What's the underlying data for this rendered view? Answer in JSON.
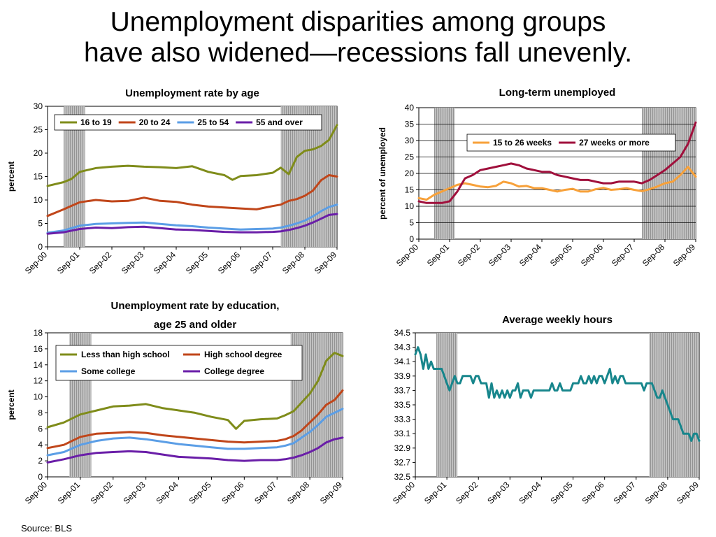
{
  "slide": {
    "title_line1": "Unemployment disparities among groups",
    "title_line2": "have also widened—recessions fall unevenly.",
    "source": "Source: BLS"
  },
  "style": {
    "recession_fill": "#c0c0c0",
    "recession_hatch": "#888888"
  },
  "chart_data": [
    {
      "type": "line",
      "title": "Unemployment rate by age",
      "xlabel": "",
      "ylabel": "percent",
      "x_tick_labels": [
        "Sep-00",
        "Sep-01",
        "Sep-02",
        "Sep-03",
        "Sep-04",
        "Sep-05",
        "Sep-06",
        "Sep-07",
        "Sep-08",
        "Sep-09"
      ],
      "x_range_months": [
        0,
        108
      ],
      "ylim": [
        0,
        30
      ],
      "y_ticks": [
        "0",
        "5",
        "10",
        "15",
        "20",
        "25",
        "30"
      ],
      "recessions_months": [
        [
          6,
          14
        ],
        [
          87,
          108
        ]
      ],
      "grid": false,
      "legend_placement": "top",
      "series": [
        {
          "name": "16 to 19",
          "color": "#7f8c1a",
          "x": [
            0,
            6,
            9,
            12,
            18,
            24,
            30,
            36,
            42,
            48,
            54,
            60,
            66,
            69,
            72,
            78,
            84,
            87,
            90,
            93,
            96,
            99,
            102,
            105,
            108
          ],
          "y": [
            13,
            13.8,
            14.5,
            16,
            16.8,
            17.1,
            17.3,
            17.1,
            17.0,
            16.8,
            17.2,
            16.0,
            15.3,
            14.3,
            15.1,
            15.3,
            15.8,
            16.9,
            15.5,
            19.2,
            20.5,
            20.8,
            21.5,
            22.8,
            26.0
          ]
        },
        {
          "name": "20 to 24",
          "color": "#c0461a",
          "x": [
            0,
            6,
            12,
            18,
            24,
            30,
            36,
            42,
            48,
            54,
            60,
            66,
            72,
            78,
            84,
            87,
            90,
            93,
            96,
            99,
            102,
            105,
            108
          ],
          "y": [
            6.6,
            8.0,
            9.5,
            10.0,
            9.7,
            9.8,
            10.5,
            9.8,
            9.6,
            9.0,
            8.6,
            8.4,
            8.2,
            8.0,
            8.7,
            9.0,
            9.8,
            10.2,
            10.9,
            12.0,
            14.2,
            15.3,
            15.0
          ]
        },
        {
          "name": "25 to 54",
          "color": "#5b9ee6",
          "x": [
            0,
            6,
            12,
            18,
            24,
            30,
            36,
            42,
            48,
            54,
            60,
            66,
            72,
            78,
            84,
            87,
            90,
            93,
            96,
            99,
            102,
            105,
            108
          ],
          "y": [
            3.0,
            3.5,
            4.5,
            4.9,
            5.0,
            5.1,
            5.2,
            4.9,
            4.6,
            4.4,
            4.1,
            3.9,
            3.7,
            3.8,
            3.9,
            4.1,
            4.5,
            5.0,
            5.6,
            6.5,
            7.6,
            8.5,
            9.0
          ]
        },
        {
          "name": "55 and over",
          "color": "#6a1ea8",
          "x": [
            0,
            6,
            12,
            18,
            24,
            30,
            36,
            42,
            48,
            54,
            60,
            66,
            72,
            78,
            84,
            87,
            90,
            93,
            96,
            99,
            102,
            105,
            108
          ],
          "y": [
            2.8,
            3.1,
            3.8,
            4.1,
            4.0,
            4.2,
            4.3,
            4.0,
            3.7,
            3.6,
            3.4,
            3.2,
            3.1,
            3.1,
            3.2,
            3.3,
            3.6,
            4.0,
            4.5,
            5.2,
            6.0,
            6.8,
            7.0
          ]
        }
      ]
    },
    {
      "type": "line",
      "title": "Long-term unemployed",
      "xlabel": "",
      "ylabel": "percent of unemployed",
      "x_tick_labels": [
        "Sep-00",
        "Sep-01",
        "Sep-02",
        "Sep-03",
        "Sep-04",
        "Sep-05",
        "Sep-06",
        "Sep-07",
        "Sep-08",
        "Sep-09"
      ],
      "x_range_months": [
        0,
        108
      ],
      "ylim": [
        0,
        40
      ],
      "y_ticks": [
        "0",
        "5",
        "10",
        "15",
        "20",
        "25",
        "30",
        "35",
        "40"
      ],
      "recessions_months": [
        [
          6,
          14
        ],
        [
          87,
          108
        ]
      ],
      "grid": true,
      "legend_placement": "top",
      "series": [
        {
          "name": "15 to 26 weeks",
          "color": "#f7a13a",
          "x": [
            0,
            3,
            6,
            9,
            12,
            15,
            18,
            21,
            24,
            27,
            30,
            33,
            36,
            39,
            42,
            45,
            48,
            51,
            54,
            57,
            60,
            63,
            66,
            69,
            72,
            75,
            78,
            81,
            84,
            87,
            90,
            93,
            96,
            99,
            102,
            105,
            108
          ],
          "y": [
            12.5,
            12.0,
            13.5,
            14.5,
            15.5,
            16.5,
            17.0,
            16.5,
            16.0,
            15.8,
            16.2,
            17.5,
            17.0,
            16.0,
            16.2,
            15.5,
            15.5,
            15.0,
            14.5,
            15.0,
            15.3,
            14.5,
            14.5,
            15.2,
            15.6,
            15.0,
            15.2,
            15.5,
            15.0,
            14.6,
            15.2,
            16.0,
            17.0,
            17.5,
            19.5,
            22.0,
            19.0
          ]
        },
        {
          "name": "27 weeks or more",
          "color": "#a0103c",
          "x": [
            0,
            3,
            6,
            9,
            12,
            15,
            18,
            21,
            24,
            27,
            30,
            33,
            36,
            39,
            42,
            45,
            48,
            51,
            54,
            57,
            60,
            63,
            66,
            69,
            72,
            75,
            78,
            81,
            84,
            87,
            90,
            93,
            96,
            99,
            102,
            105,
            108
          ],
          "y": [
            11.5,
            11.0,
            11.0,
            11.0,
            11.5,
            14.5,
            18.5,
            19.5,
            21.0,
            21.5,
            22.0,
            22.5,
            23.0,
            22.5,
            21.5,
            21.0,
            20.5,
            20.5,
            19.5,
            19.0,
            18.5,
            18.0,
            18.0,
            17.5,
            17.0,
            17.0,
            17.5,
            17.5,
            17.5,
            17.0,
            18.0,
            19.5,
            21.0,
            23.0,
            25.0,
            29.0,
            35.5
          ]
        }
      ]
    },
    {
      "type": "line",
      "title": "Unemployment rate by education, age 25 and older",
      "title_lines": [
        "Unemployment rate by education,",
        "age 25 and older"
      ],
      "xlabel": "",
      "ylabel": "percent",
      "x_tick_labels": [
        "Sep-00",
        "Sep-01",
        "Sep-02",
        "Sep-03",
        "Sep-04",
        "Sep-05",
        "Sep-06",
        "Sep-07",
        "Sep-08",
        "Sep-09"
      ],
      "x_range_months": [
        0,
        108
      ],
      "ylim": [
        0,
        18
      ],
      "y_ticks": [
        "0",
        "2",
        "4",
        "6",
        "8",
        "10",
        "12",
        "14",
        "16",
        "18"
      ],
      "recessions_months": [
        [
          8,
          16
        ],
        [
          89,
          108
        ]
      ],
      "grid": false,
      "legend_placement": "top",
      "series": [
        {
          "name": "Less than high school",
          "color": "#7f8c1a",
          "x": [
            0,
            6,
            12,
            18,
            24,
            30,
            36,
            42,
            48,
            54,
            60,
            66,
            69,
            72,
            78,
            84,
            87,
            90,
            93,
            96,
            99,
            102,
            105,
            108
          ],
          "y": [
            6.2,
            6.8,
            7.8,
            8.3,
            8.8,
            8.9,
            9.1,
            8.6,
            8.3,
            8.0,
            7.5,
            7.1,
            6.0,
            7.0,
            7.2,
            7.3,
            7.7,
            8.2,
            9.3,
            10.4,
            12.0,
            14.5,
            15.5,
            15.1
          ]
        },
        {
          "name": "High school degree",
          "color": "#c0461a",
          "x": [
            0,
            6,
            12,
            18,
            24,
            30,
            36,
            42,
            48,
            54,
            60,
            66,
            72,
            78,
            84,
            87,
            90,
            93,
            96,
            99,
            102,
            105,
            108
          ],
          "y": [
            3.6,
            4.0,
            5.0,
            5.4,
            5.5,
            5.6,
            5.5,
            5.2,
            5.0,
            4.8,
            4.6,
            4.4,
            4.3,
            4.4,
            4.5,
            4.7,
            5.1,
            5.8,
            6.8,
            7.8,
            9.0,
            9.6,
            10.8
          ]
        },
        {
          "name": "Some college",
          "color": "#5b9ee6",
          "x": [
            0,
            6,
            12,
            18,
            24,
            30,
            36,
            42,
            48,
            54,
            60,
            66,
            72,
            78,
            84,
            87,
            90,
            93,
            96,
            99,
            102,
            105,
            108
          ],
          "y": [
            2.7,
            3.1,
            4.0,
            4.5,
            4.8,
            4.9,
            4.7,
            4.4,
            4.1,
            3.9,
            3.7,
            3.5,
            3.5,
            3.6,
            3.7,
            3.9,
            4.2,
            4.9,
            5.6,
            6.5,
            7.5,
            8.0,
            8.5
          ]
        },
        {
          "name": "College degree",
          "color": "#6a1ea8",
          "x": [
            0,
            6,
            12,
            18,
            24,
            30,
            36,
            42,
            48,
            54,
            60,
            66,
            72,
            78,
            84,
            87,
            90,
            93,
            96,
            99,
            102,
            105,
            108
          ],
          "y": [
            1.8,
            2.2,
            2.7,
            3.0,
            3.1,
            3.2,
            3.1,
            2.8,
            2.5,
            2.4,
            2.3,
            2.1,
            2.0,
            2.1,
            2.1,
            2.2,
            2.4,
            2.7,
            3.1,
            3.6,
            4.3,
            4.7,
            4.9
          ]
        }
      ]
    },
    {
      "type": "line",
      "title": "Average weekly hours",
      "xlabel": "",
      "ylabel": "",
      "x_tick_labels": [
        "Sep-00",
        "Sep-01",
        "Sep-02",
        "Sep-03",
        "Sep-04",
        "Sep-05",
        "Sep-06",
        "Sep-07",
        "Sep-08",
        "Sep-09"
      ],
      "x_range_months": [
        0,
        108
      ],
      "ylim": [
        32.5,
        34.5
      ],
      "y_ticks": [
        "32.5",
        "32.7",
        "32.9",
        "33.1",
        "33.3",
        "33.5",
        "33.7",
        "33.9",
        "34.1",
        "34.3",
        "34.5"
      ],
      "recessions_months": [
        [
          8,
          16
        ],
        [
          89,
          108
        ]
      ],
      "grid": false,
      "legend_placement": "none",
      "series": [
        {
          "name": "",
          "color": "#17868c",
          "x": [
            0,
            1,
            2,
            3,
            4,
            5,
            6,
            7,
            8,
            9,
            10,
            11,
            12,
            13,
            14,
            15,
            16,
            17,
            18,
            19,
            20,
            21,
            22,
            23,
            24,
            25,
            26,
            27,
            28,
            29,
            30,
            31,
            32,
            33,
            34,
            35,
            36,
            37,
            38,
            39,
            40,
            41,
            42,
            43,
            44,
            45,
            46,
            47,
            48,
            49,
            50,
            51,
            52,
            53,
            54,
            55,
            56,
            57,
            58,
            59,
            60,
            61,
            62,
            63,
            64,
            65,
            66,
            67,
            68,
            69,
            70,
            71,
            72,
            73,
            74,
            75,
            76,
            77,
            78,
            79,
            80,
            81,
            82,
            83,
            84,
            85,
            86,
            87,
            88,
            89,
            90,
            91,
            92,
            93,
            94,
            95,
            96,
            97,
            98,
            99,
            100,
            101,
            102,
            103,
            104,
            105,
            106,
            107,
            108
          ],
          "y": [
            34.2,
            34.3,
            34.2,
            34.0,
            34.2,
            34.0,
            34.1,
            34.0,
            34.0,
            34.0,
            34.0,
            33.9,
            33.8,
            33.7,
            33.8,
            33.9,
            33.8,
            33.8,
            33.9,
            33.9,
            33.9,
            33.9,
            33.8,
            33.9,
            33.9,
            33.8,
            33.8,
            33.8,
            33.6,
            33.8,
            33.6,
            33.7,
            33.6,
            33.7,
            33.6,
            33.7,
            33.6,
            33.7,
            33.7,
            33.8,
            33.6,
            33.7,
            33.7,
            33.7,
            33.6,
            33.7,
            33.7,
            33.7,
            33.7,
            33.7,
            33.7,
            33.7,
            33.8,
            33.7,
            33.7,
            33.8,
            33.7,
            33.7,
            33.7,
            33.7,
            33.8,
            33.8,
            33.8,
            33.9,
            33.8,
            33.8,
            33.9,
            33.8,
            33.9,
            33.8,
            33.9,
            33.9,
            33.8,
            33.9,
            34.0,
            33.8,
            33.9,
            33.8,
            33.9,
            33.9,
            33.8,
            33.8,
            33.8,
            33.8,
            33.8,
            33.8,
            33.8,
            33.7,
            33.8,
            33.8,
            33.8,
            33.7,
            33.6,
            33.6,
            33.7,
            33.6,
            33.5,
            33.4,
            33.3,
            33.3,
            33.3,
            33.2,
            33.1,
            33.1,
            33.1,
            33.0,
            33.1,
            33.1,
            33.0
          ]
        }
      ]
    }
  ]
}
